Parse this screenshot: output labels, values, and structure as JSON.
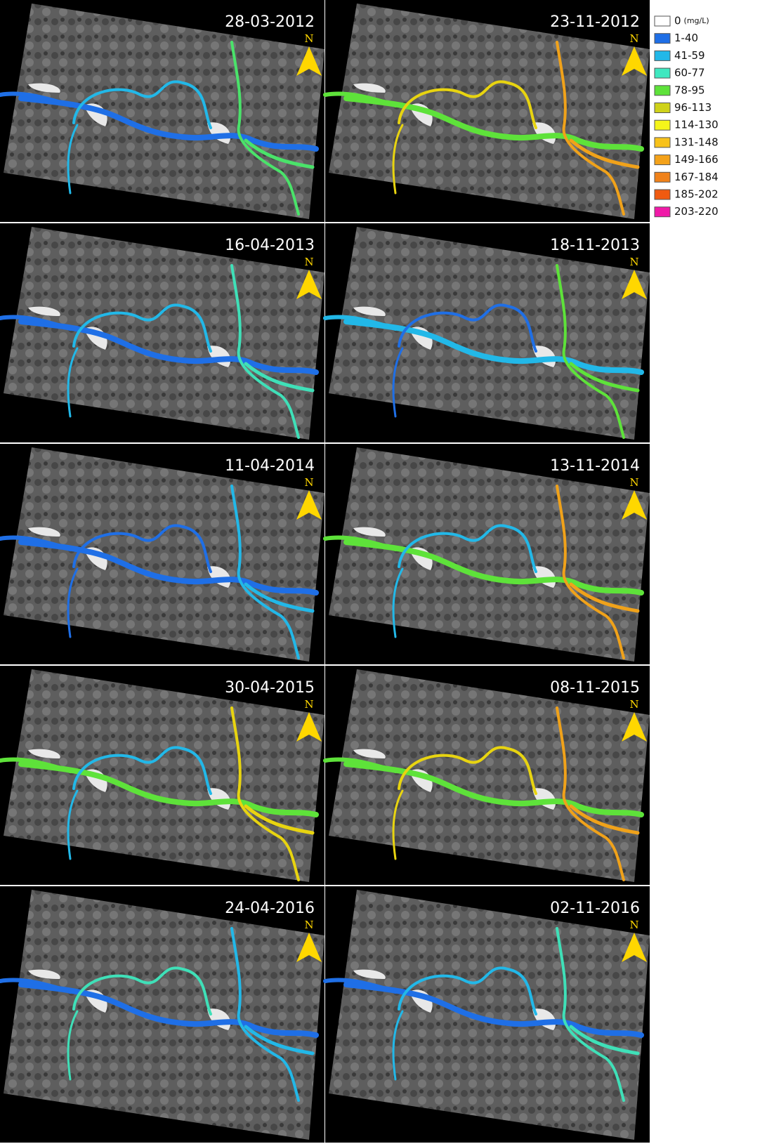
{
  "panels": [
    {
      "date": "28-03-2012",
      "north": "N",
      "river_colors": [
        "#1f6fe6",
        "#22b8e8",
        "#4ae36a"
      ]
    },
    {
      "date": "23-11-2012",
      "north": "N",
      "river_colors": [
        "#5ee23a",
        "#e8d410",
        "#f0a21a"
      ]
    },
    {
      "date": "16-04-2013",
      "north": "N",
      "river_colors": [
        "#1f6fe6",
        "#22b8e8",
        "#3fe0b8"
      ]
    },
    {
      "date": "18-11-2013",
      "north": "N",
      "river_colors": [
        "#22b8e8",
        "#1f6fe6",
        "#5ee23a"
      ]
    },
    {
      "date": "11-04-2014",
      "north": "N",
      "river_colors": [
        "#1f6fe6",
        "#1f6fe6",
        "#22b8e8"
      ]
    },
    {
      "date": "13-11-2014",
      "north": "N",
      "river_colors": [
        "#5ee23a",
        "#22b8e8",
        "#f0a21a"
      ]
    },
    {
      "date": "30-04-2015",
      "north": "N",
      "river_colors": [
        "#5ee23a",
        "#22b8e8",
        "#e8d410"
      ]
    },
    {
      "date": "08-11-2015",
      "north": "N",
      "river_colors": [
        "#5ee23a",
        "#e8d410",
        "#f0a21a"
      ]
    },
    {
      "date": "24-04-2016",
      "north": "N",
      "river_colors": [
        "#1f6fe6",
        "#3fe0b8",
        "#22b8e8"
      ]
    },
    {
      "date": "02-11-2016",
      "north": "N",
      "river_colors": [
        "#1f6fe6",
        "#22b8e8",
        "#3fe0b8"
      ]
    }
  ],
  "legend": {
    "items": [
      {
        "label": "0",
        "unit": "(mg/L)",
        "color": "#ffffff"
      },
      {
        "label": "1-40",
        "color": "#1f6fe6"
      },
      {
        "label": "41-59",
        "color": "#22b8e8"
      },
      {
        "label": "60-77",
        "color": "#3fe8c0"
      },
      {
        "label": "78-95",
        "color": "#5ee23a"
      },
      {
        "label": "96-113",
        "color": "#cfd21a"
      },
      {
        "label": "114-130",
        "color": "#f5f51a"
      },
      {
        "label": "131-148",
        "color": "#f8c21a"
      },
      {
        "label": "149-166",
        "color": "#f4a21a"
      },
      {
        "label": "167-184",
        "color": "#f0821a"
      },
      {
        "label": "185-202",
        "color": "#f05a10"
      },
      {
        "label": "203-220",
        "color": "#f01aa8"
      }
    ]
  }
}
